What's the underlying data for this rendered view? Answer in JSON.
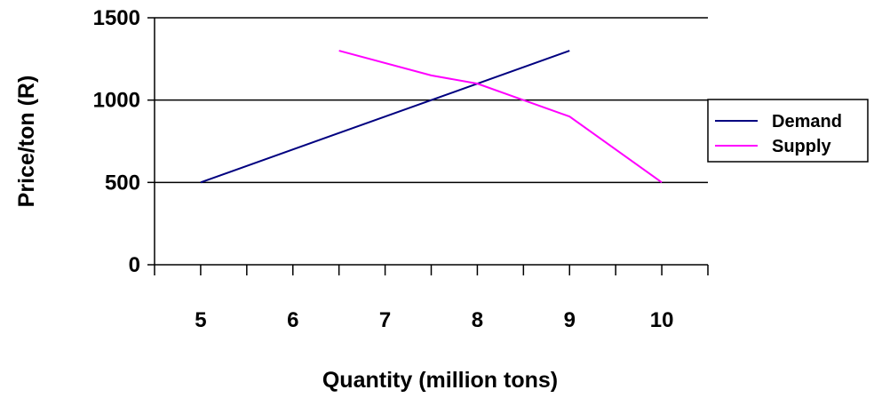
{
  "chart_data": {
    "type": "line",
    "title": "",
    "xlabel": "Quantity (million tons)",
    "ylabel": "Price/ton (R)",
    "x_ticks": [
      "5",
      "6",
      "7",
      "8",
      "9",
      "10"
    ],
    "y_ticks": [
      "0",
      "500",
      "1000",
      "1500"
    ],
    "ylim": [
      0,
      1500
    ],
    "grid": "horizontal major gridlines",
    "legend_position": "right",
    "series": [
      {
        "name": "Demand",
        "color": "#000080",
        "points": [
          {
            "x": 5,
            "y": 500
          },
          {
            "x": 9,
            "y": 1300
          }
        ]
      },
      {
        "name": "Supply",
        "color": "#ff00ff",
        "points": [
          {
            "x": 6.5,
            "y": 1300
          },
          {
            "x": 7.5,
            "y": 1150
          },
          {
            "x": 8.0,
            "y": 1100
          },
          {
            "x": 8.5,
            "y": 1000
          },
          {
            "x": 9.0,
            "y": 900
          },
          {
            "x": 10.0,
            "y": 500
          }
        ]
      }
    ]
  }
}
